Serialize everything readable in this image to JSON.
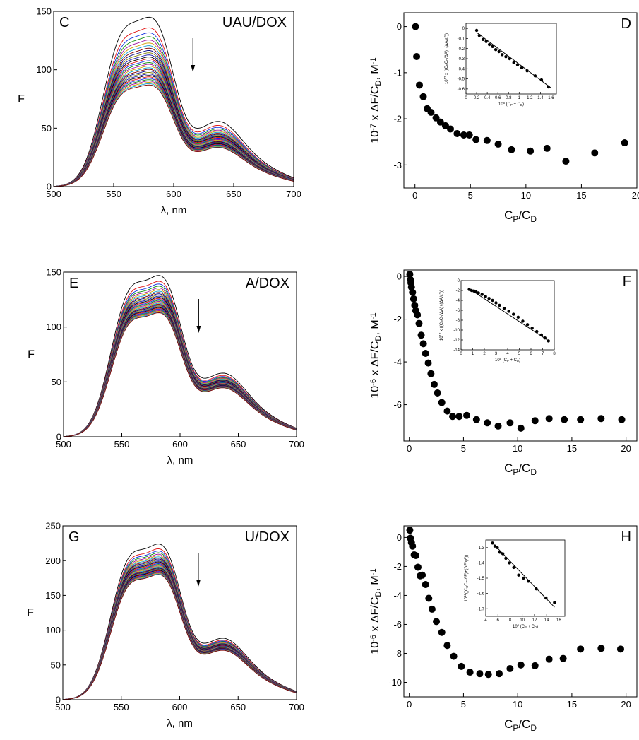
{
  "chart_data": [
    {
      "type": "line",
      "panel": "C",
      "label": "UAU/DOX",
      "xlabel": "λ, nm",
      "ylabel": "F",
      "xlim": [
        500,
        700
      ],
      "ylim": [
        0,
        150
      ],
      "xticks": [
        500,
        550,
        600,
        650,
        700
      ],
      "yticks": [
        0,
        50,
        100,
        150
      ],
      "grid": false,
      "arrow": "down",
      "series_count": 30,
      "peak_first": 145,
      "peak_last": 87,
      "peak_wavelengths": [
        556,
        587
      ],
      "colors": [
        "#000000",
        "#e01010",
        "#1030e0",
        "#109010",
        "#a010a0",
        "#d0a000",
        "#10a0d0",
        "#800000",
        "#000080",
        "#808000",
        "#1010b0"
      ]
    },
    {
      "type": "scatter",
      "panel": "D",
      "xlabel": "CP/CD",
      "ylabel": "10-7 x ΔF/CD, M-1",
      "xlim": [
        -1,
        20
      ],
      "ylim": [
        -3.5,
        0.3
      ],
      "xticks": [
        0,
        5,
        10,
        15,
        20
      ],
      "yticks": [
        0,
        -1,
        -2,
        -3
      ],
      "x": [
        0.05,
        0.15,
        0.4,
        0.75,
        1.1,
        1.45,
        1.9,
        2.3,
        2.75,
        3.2,
        3.8,
        4.4,
        4.9,
        5.5,
        6.5,
        7.5,
        8.7,
        10.4,
        11.9,
        13.6,
        16.2,
        18.9
      ],
      "y": [
        0.0,
        -0.65,
        -1.27,
        -1.52,
        -1.78,
        -1.86,
        -1.98,
        -2.07,
        -2.15,
        -2.22,
        -2.32,
        -2.35,
        -2.35,
        -2.45,
        -2.47,
        -2.55,
        -2.67,
        -2.7,
        -2.64,
        -2.92,
        -2.74,
        -2.52
      ],
      "inset": {
        "xlabel": "10⁶ (CP + CD)",
        "ylabel": "10¹² x ((CP CD)/ΔA)+(ΔA/ε²)",
        "xlim": [
          0,
          1.7
        ],
        "ylim": [
          -0.65,
          0.05
        ],
        "xticks": [
          0.0,
          0.2,
          0.4,
          0.6,
          0.8,
          1.0,
          1.2,
          1.4,
          1.6
        ],
        "yticks": [
          0.0,
          -0.1,
          -0.2,
          -0.3,
          -0.4,
          -0.5,
          -0.6
        ],
        "x": [
          0.2,
          0.25,
          0.32,
          0.38,
          0.44,
          0.5,
          0.56,
          0.62,
          0.68,
          0.75,
          0.82,
          0.9,
          0.97,
          1.05,
          1.15,
          1.3,
          1.42,
          1.55
        ],
        "y": [
          -0.02,
          -0.07,
          -0.11,
          -0.13,
          -0.16,
          -0.18,
          -0.21,
          -0.23,
          -0.26,
          -0.28,
          -0.3,
          -0.34,
          -0.36,
          -0.39,
          -0.42,
          -0.47,
          -0.51,
          -0.58
        ],
        "fit": [
          [
            0.2,
            -0.04
          ],
          [
            1.6,
            -0.59
          ]
        ]
      }
    },
    {
      "type": "line",
      "panel": "E",
      "label": "A/DOX",
      "xlabel": "λ, nm",
      "ylabel": "F",
      "xlim": [
        500,
        700
      ],
      "ylim": [
        0,
        150
      ],
      "xticks": [
        500,
        550,
        600,
        650,
        700
      ],
      "yticks": [
        0,
        50,
        100,
        150
      ],
      "grid": false,
      "arrow": "down",
      "series_count": 30,
      "peak_first": 147,
      "peak_last": 113,
      "peak_wavelengths": [
        556,
        588
      ],
      "colors": [
        "#000000",
        "#e01010",
        "#1030e0",
        "#109010",
        "#a010a0",
        "#d0a000",
        "#10a0d0",
        "#800000",
        "#000080",
        "#808000",
        "#1010b0"
      ]
    },
    {
      "type": "scatter",
      "panel": "F",
      "xlabel": "CP/CD",
      "ylabel": "10-6 x ΔF/CD, M-1",
      "xlim": [
        -0.5,
        21
      ],
      "ylim": [
        -7.7,
        0.3
      ],
      "xticks": [
        0,
        5,
        10,
        15,
        20
      ],
      "yticks": [
        0,
        -2,
        -4,
        -6
      ],
      "x": [
        0.05,
        0.1,
        0.15,
        0.2,
        0.3,
        0.4,
        0.5,
        0.6,
        0.75,
        0.9,
        1.1,
        1.3,
        1.5,
        1.75,
        2.0,
        2.3,
        2.6,
        3.0,
        3.5,
        4.0,
        4.6,
        5.3,
        6.2,
        7.2,
        8.2,
        9.3,
        10.3,
        11.6,
        12.9,
        14.3,
        15.8,
        17.7,
        19.6
      ],
      "y": [
        0.1,
        -0.15,
        -0.3,
        -0.5,
        -0.75,
        -1.05,
        -1.35,
        -1.6,
        -1.8,
        -2.2,
        -2.75,
        -3.15,
        -3.6,
        -4.05,
        -4.55,
        -5.05,
        -5.45,
        -5.9,
        -6.3,
        -6.55,
        -6.55,
        -6.5,
        -6.7,
        -6.85,
        -7.0,
        -6.85,
        -7.1,
        -6.75,
        -6.65,
        -6.7,
        -6.7,
        -6.65,
        -6.7
      ],
      "inset": {
        "xlabel": "10⁵ (CP + CD)",
        "ylabel": "10¹² x ((CP CD)/ΔA)+(ΔA/ε²)",
        "xlim": [
          0,
          8
        ],
        "ylim": [
          -14,
          0
        ],
        "xticks": [
          0,
          1,
          2,
          3,
          4,
          5,
          6,
          7,
          8
        ],
        "yticks": [
          0,
          -2,
          -4,
          -6,
          -8,
          -10,
          -12,
          -14
        ],
        "x": [
          0.7,
          0.9,
          1.1,
          1.3,
          1.5,
          1.8,
          2.1,
          2.4,
          2.7,
          3.0,
          3.3,
          3.7,
          4.1,
          4.5,
          4.9,
          5.3,
          5.7,
          6.1,
          6.5,
          6.9,
          7.2,
          7.5
        ],
        "y": [
          -1.8,
          -2.0,
          -2.1,
          -2.3,
          -2.5,
          -2.8,
          -3.2,
          -3.6,
          -4.0,
          -4.5,
          -5.0,
          -5.6,
          -6.2,
          -6.8,
          -7.4,
          -8.2,
          -8.9,
          -9.6,
          -10.3,
          -11.0,
          -11.6,
          -12.2
        ],
        "fit": [
          [
            0.6,
            -1.5
          ],
          [
            7.6,
            -12.3
          ]
        ]
      }
    },
    {
      "type": "line",
      "panel": "G",
      "label": "U/DOX",
      "xlabel": "λ, nm",
      "ylabel": "F",
      "xlim": [
        500,
        700
      ],
      "ylim": [
        0,
        250
      ],
      "xticks": [
        500,
        550,
        600,
        650,
        700
      ],
      "yticks": [
        0,
        50,
        100,
        150,
        200,
        250
      ],
      "grid": false,
      "arrow": "down",
      "series_count": 30,
      "peak_first": 224,
      "peak_last": 180,
      "peak_wavelengths": [
        556,
        588
      ],
      "colors": [
        "#000000",
        "#e01010",
        "#1030e0",
        "#109010",
        "#a010a0",
        "#d0a000",
        "#10a0d0",
        "#800000",
        "#000080",
        "#808000",
        "#1010b0"
      ]
    },
    {
      "type": "scatter",
      "panel": "H",
      "xlabel": "CP/CD",
      "ylabel": "10-6 x ΔF/CD, M-1",
      "xlim": [
        -0.5,
        21
      ],
      "ylim": [
        -11,
        0.8
      ],
      "xticks": [
        0,
        5,
        10,
        15,
        20
      ],
      "yticks": [
        0,
        -2,
        -4,
        -6,
        -8,
        -10
      ],
      "x": [
        0.05,
        0.1,
        0.2,
        0.3,
        0.45,
        0.6,
        0.8,
        1.0,
        1.2,
        1.5,
        1.8,
        2.1,
        2.5,
        3.0,
        3.5,
        4.1,
        4.8,
        5.6,
        6.5,
        7.3,
        8.3,
        9.3,
        10.3,
        11.6,
        12.9,
        14.2,
        15.8,
        17.7,
        19.5
      ],
      "y": [
        0.5,
        -0.05,
        -0.35,
        -0.6,
        -1.2,
        -1.25,
        -2.05,
        -2.65,
        -2.6,
        -3.25,
        -4.2,
        -4.95,
        -5.8,
        -6.55,
        -7.45,
        -8.2,
        -8.9,
        -9.3,
        -9.4,
        -9.45,
        -9.4,
        -9.05,
        -8.8,
        -8.85,
        -8.4,
        -8.35,
        -7.7,
        -7.65,
        -7.7
      ],
      "inset": {
        "xlabel": "10⁶ (CP + CD)",
        "ylabel": "10¹²((CD CP/ΔF)+(ΔF/ψ²))",
        "xlim": [
          4,
          17
        ],
        "ylim": [
          -1.75,
          -1.25
        ],
        "xticks": [
          4,
          6,
          8,
          10,
          12,
          14,
          16
        ],
        "yticks": [
          -1.3,
          -1.4,
          -1.5,
          -1.6,
          -1.7
        ],
        "x": [
          5.1,
          5.5,
          5.9,
          6.3,
          6.8,
          7.3,
          7.9,
          8.6,
          9.4,
          10.2,
          11.0,
          12.3,
          13.9,
          15.3
        ],
        "y": [
          -1.27,
          -1.29,
          -1.3,
          -1.33,
          -1.34,
          -1.37,
          -1.4,
          -1.43,
          -1.48,
          -1.5,
          -1.52,
          -1.57,
          -1.63,
          -1.66
        ],
        "fit": [
          [
            5.0,
            -1.265
          ],
          [
            15.3,
            -1.69
          ]
        ]
      }
    }
  ]
}
